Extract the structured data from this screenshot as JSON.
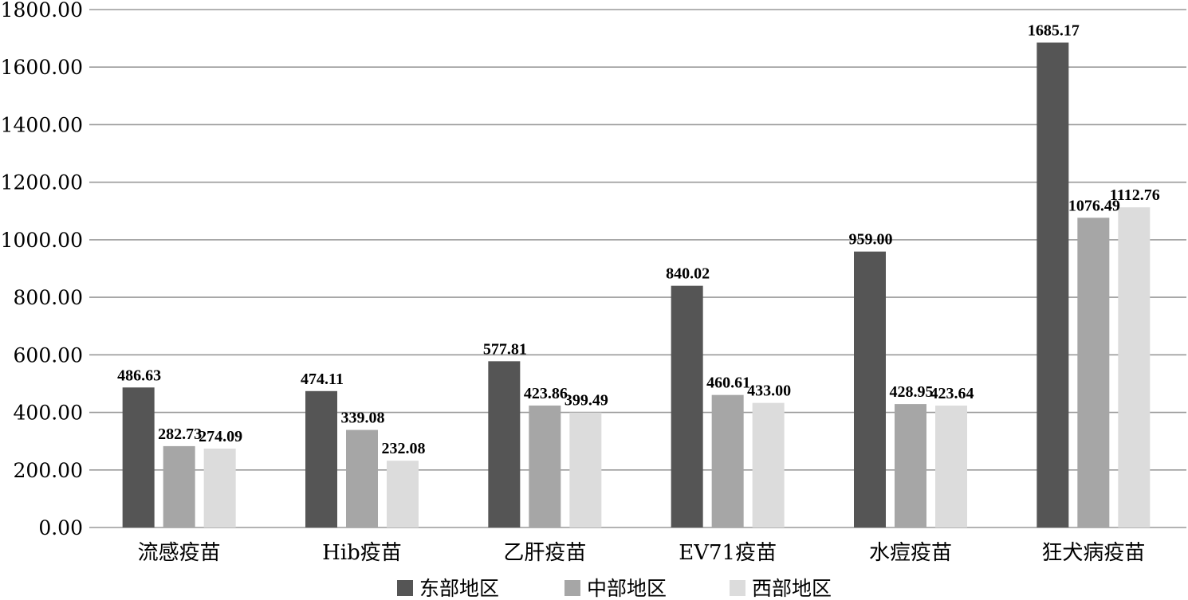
{
  "chart_data": {
    "type": "bar",
    "title": "",
    "xlabel": "",
    "ylabel": "",
    "categories": [
      "流感疫苗",
      "Hib疫苗",
      "乙肝疫苗",
      "EV71疫苗",
      "水痘疫苗",
      "狂犬病疫苗"
    ],
    "series": [
      {
        "name": "东部地区",
        "color": "#555555",
        "values": [
          486.63,
          474.11,
          577.81,
          840.02,
          959.0,
          1685.17
        ]
      },
      {
        "name": "中部地区",
        "color": "#a6a6a6",
        "values": [
          282.73,
          339.08,
          423.86,
          460.61,
          428.95,
          1076.49
        ]
      },
      {
        "name": "西部地区",
        "color": "#dcdcdc",
        "values": [
          274.09,
          232.08,
          399.49,
          433.0,
          423.64,
          1112.76
        ]
      }
    ],
    "ylim": [
      0,
      1800
    ],
    "yticks": [
      "0.00",
      "200.00",
      "400.00",
      "600.00",
      "800.00",
      "1000.00",
      "1200.00",
      "1400.00",
      "1600.00",
      "1800.00"
    ],
    "grid": true,
    "legend": "bottom-center",
    "data_labels": true
  }
}
